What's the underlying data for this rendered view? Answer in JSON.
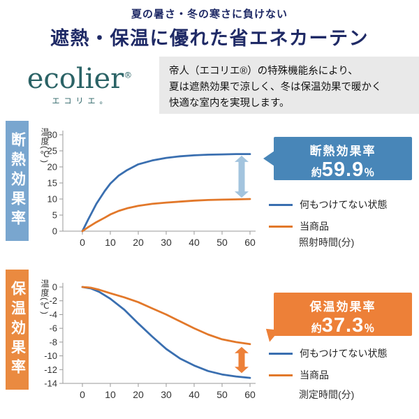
{
  "header": {
    "tagline": "夏の暑さ・冬の寒さに負けない",
    "title": "遮熱・保温に優れた省エネカーテン"
  },
  "brand": {
    "logo_text": "ecolier",
    "logo_reg": "®",
    "logo_kana": "エコリエ。",
    "description_lines": [
      "帝人（エコリエ®）の特殊機能糸により、",
      "夏は遮熱効果で涼しく、冬は保温効果で暖かく",
      "快適な室内を実現します。"
    ]
  },
  "colors": {
    "title_navy": "#1f2a66",
    "logo_teal": "#2b6366",
    "band_gray": "#e9e9e9",
    "insulation_bar": "#79a6cf",
    "warmth_bar": "#ea8a40"
  },
  "chart_data": [
    {
      "type": "line",
      "section_label": "断熱効果率",
      "ylabel": "温度(℃)",
      "xlabel": "照射時間(分)",
      "xlim": [
        0,
        60
      ],
      "ylim": [
        0,
        30
      ],
      "x_ticks": [
        0,
        10,
        20,
        30,
        40,
        50,
        60
      ],
      "y_ticks": [
        0,
        5,
        10,
        15,
        20,
        25,
        30
      ],
      "grid": false,
      "legend_position": "right",
      "series": [
        {
          "name": "何もつけてない状態",
          "color": "#3a6fb0",
          "x": [
            0,
            2,
            5,
            8,
            10,
            13,
            16,
            20,
            25,
            30,
            35,
            40,
            45,
            50,
            55,
            60
          ],
          "y": [
            0,
            3.5,
            8.5,
            12.5,
            14.8,
            17.3,
            19.0,
            20.8,
            22.0,
            22.8,
            23.3,
            23.6,
            23.8,
            23.9,
            24.0,
            24.0
          ]
        },
        {
          "name": "当商品",
          "color": "#e2782a",
          "x": [
            0,
            2,
            5,
            8,
            10,
            13,
            16,
            20,
            25,
            30,
            35,
            40,
            45,
            50,
            55,
            60
          ],
          "y": [
            0,
            1.2,
            2.8,
            4.2,
            5.2,
            6.3,
            7.1,
            7.9,
            8.5,
            8.9,
            9.2,
            9.5,
            9.7,
            9.8,
            9.9,
            10.0
          ]
        }
      ],
      "diff_arrow": {
        "x": 57,
        "y1": 10.4,
        "y2": 23.5,
        "color": "#a3c4de"
      },
      "callout": {
        "title": "断熱効果率",
        "prefix": "約",
        "value": "59.9",
        "unit": "％",
        "bg": "#4886b8"
      }
    },
    {
      "type": "line",
      "section_label": "保温効果率",
      "ylabel": "温度(℃)",
      "xlabel": "測定時間(分)",
      "xlim": [
        0,
        60
      ],
      "ylim": [
        -14,
        0
      ],
      "x_ticks": [
        0,
        10,
        20,
        30,
        40,
        50,
        60
      ],
      "y_ticks": [
        0,
        -2,
        -4,
        -6,
        -8,
        -10,
        -12,
        -14
      ],
      "grid": false,
      "legend_position": "right",
      "series": [
        {
          "name": "何もつけてない状態",
          "color": "#3a6fb0",
          "x": [
            0,
            3,
            6,
            10,
            15,
            20,
            25,
            30,
            35,
            40,
            45,
            50,
            55,
            60
          ],
          "y": [
            0,
            -0.2,
            -0.7,
            -1.7,
            -3.3,
            -5.3,
            -7.2,
            -9.0,
            -10.4,
            -11.4,
            -12.2,
            -12.7,
            -13.0,
            -13.2
          ]
        },
        {
          "name": "当商品",
          "color": "#e2782a",
          "x": [
            0,
            3,
            6,
            10,
            15,
            20,
            25,
            30,
            35,
            40,
            45,
            50,
            55,
            60
          ],
          "y": [
            0,
            -0.1,
            -0.4,
            -0.9,
            -1.5,
            -2.2,
            -3.1,
            -4.0,
            -5.0,
            -6.0,
            -6.9,
            -7.6,
            -8.0,
            -8.3
          ]
        }
      ],
      "diff_arrow": {
        "x": 57,
        "y1": -12.5,
        "y2": -8.7,
        "color": "#ed8038"
      },
      "callout": {
        "title": "保温効果率",
        "prefix": "約",
        "value": "37.3",
        "unit": "％",
        "bg": "#ed8038"
      }
    }
  ]
}
